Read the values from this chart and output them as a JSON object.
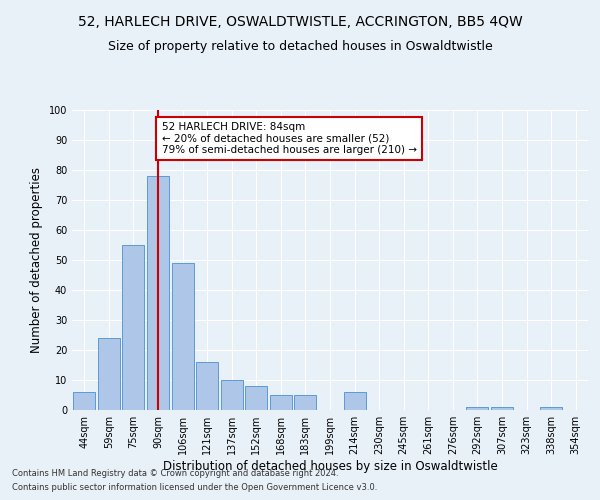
{
  "title": "52, HARLECH DRIVE, OSWALDTWISTLE, ACCRINGTON, BB5 4QW",
  "subtitle": "Size of property relative to detached houses in Oswaldtwistle",
  "xlabel": "Distribution of detached houses by size in Oswaldtwistle",
  "ylabel": "Number of detached properties",
  "footnote1": "Contains HM Land Registry data © Crown copyright and database right 2024.",
  "footnote2": "Contains public sector information licensed under the Open Government Licence v3.0.",
  "bar_labels": [
    "44sqm",
    "59sqm",
    "75sqm",
    "90sqm",
    "106sqm",
    "121sqm",
    "137sqm",
    "152sqm",
    "168sqm",
    "183sqm",
    "199sqm",
    "214sqm",
    "230sqm",
    "245sqm",
    "261sqm",
    "276sqm",
    "292sqm",
    "307sqm",
    "323sqm",
    "338sqm",
    "354sqm"
  ],
  "bar_values": [
    6,
    24,
    55,
    78,
    49,
    16,
    10,
    8,
    5,
    5,
    0,
    6,
    0,
    0,
    0,
    0,
    1,
    1,
    0,
    1,
    0
  ],
  "bar_color": "#aec6e8",
  "bar_edge_color": "#5b9bd5",
  "highlight_bar_index": 3,
  "highlight_line_color": "#cc0000",
  "annotation_text": "52 HARLECH DRIVE: 84sqm\n← 20% of detached houses are smaller (52)\n79% of semi-detached houses are larger (210) →",
  "annotation_box_edge_color": "#cc0000",
  "annotation_box_face_color": "#ffffff",
  "ylim": [
    0,
    100
  ],
  "yticks": [
    0,
    10,
    20,
    30,
    40,
    50,
    60,
    70,
    80,
    90,
    100
  ],
  "bg_color": "#e8f0f8",
  "axes_bg_color": "#e8f0f8",
  "title_fontsize": 10,
  "subtitle_fontsize": 9,
  "axis_label_fontsize": 8.5,
  "tick_fontsize": 7,
  "annotation_fontsize": 7.5,
  "footnote_fontsize": 6
}
